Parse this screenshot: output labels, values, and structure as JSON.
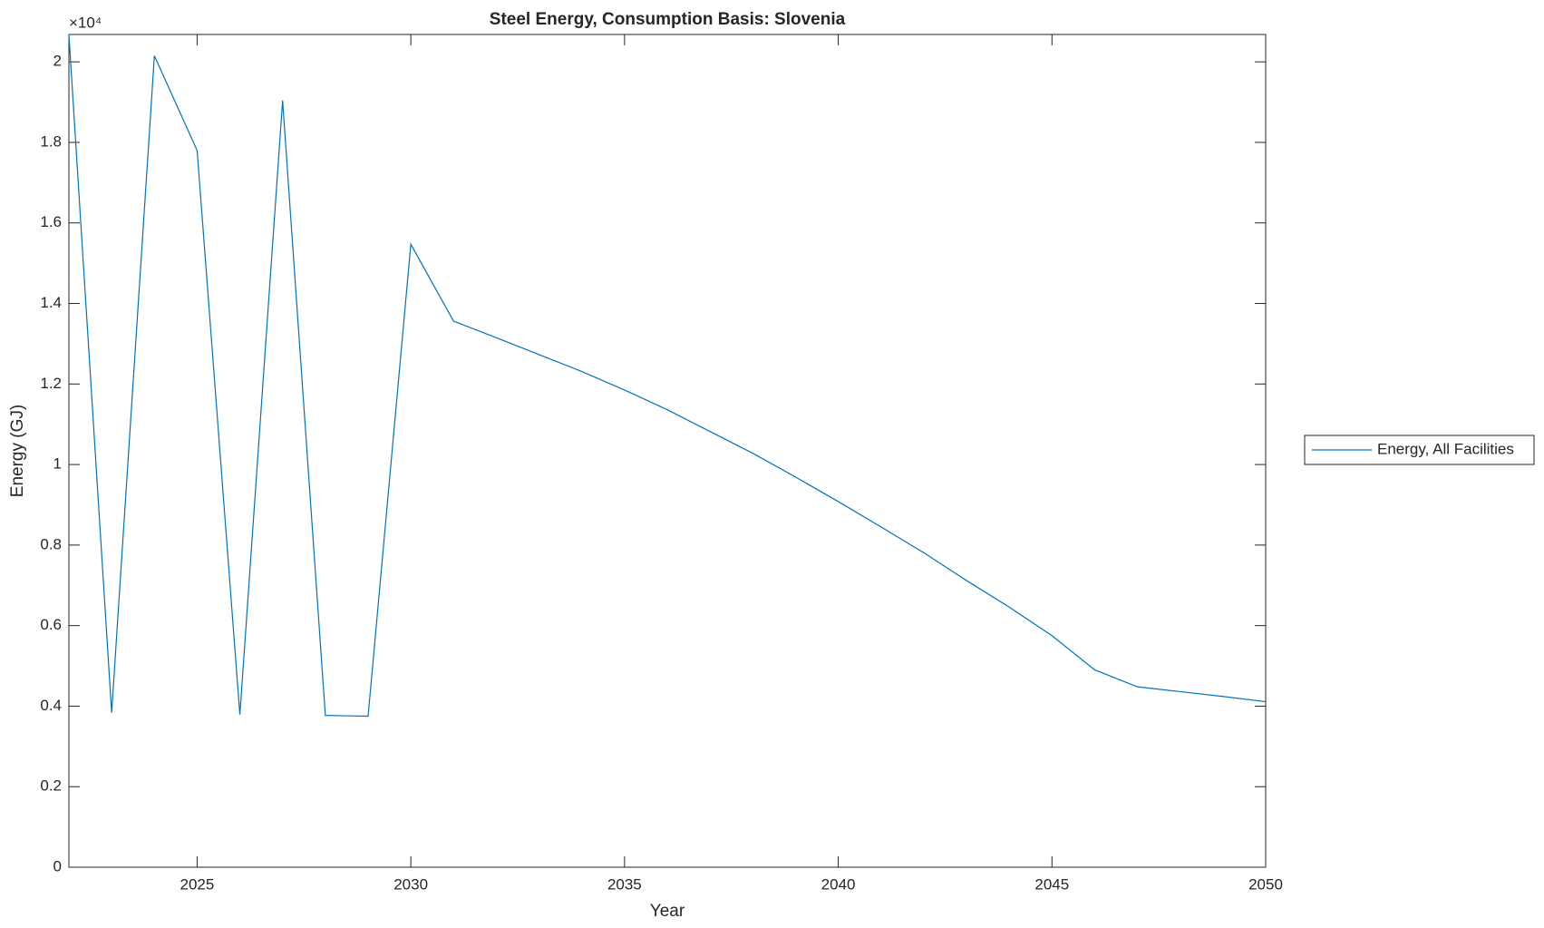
{
  "chart_data": {
    "type": "line",
    "title": "Steel Energy, Consumption Basis: Slovenia",
    "x_label": "Year",
    "y_label": "Energy (GJ)",
    "y_multiplier": "×10⁴",
    "x": [
      2022,
      2023,
      2024,
      2025,
      2026,
      2027,
      2028,
      2029,
      2030,
      2031,
      2032,
      2033,
      2034,
      2035,
      2036,
      2037,
      2038,
      2039,
      2040,
      2041,
      2042,
      2043,
      2044,
      2045,
      2046,
      2047,
      2048,
      2049,
      2050
    ],
    "series": [
      {
        "name": "Energy, All Facilities",
        "color": "#0072bd",
        "values": [
          2.068,
          0.384,
          2.015,
          1.78,
          0.379,
          1.904,
          0.377,
          0.375,
          1.547,
          1.356,
          1.315,
          1.273,
          1.231,
          1.185,
          1.136,
          1.082,
          1.028,
          0.969,
          0.908,
          0.845,
          0.781,
          0.712,
          0.646,
          0.575,
          0.49,
          0.448,
          0.436,
          0.424,
          0.411
        ]
      }
    ],
    "xlim": [
      2022,
      2050
    ],
    "xticks": [
      2025,
      2030,
      2035,
      2040,
      2045,
      2050
    ],
    "ylim": [
      0,
      2.068
    ],
    "yticks": [
      0,
      0.2,
      0.4,
      0.6,
      0.8,
      1,
      1.2,
      1.4,
      1.6,
      1.8,
      2
    ],
    "grid": false,
    "legend": "outside-right"
  }
}
